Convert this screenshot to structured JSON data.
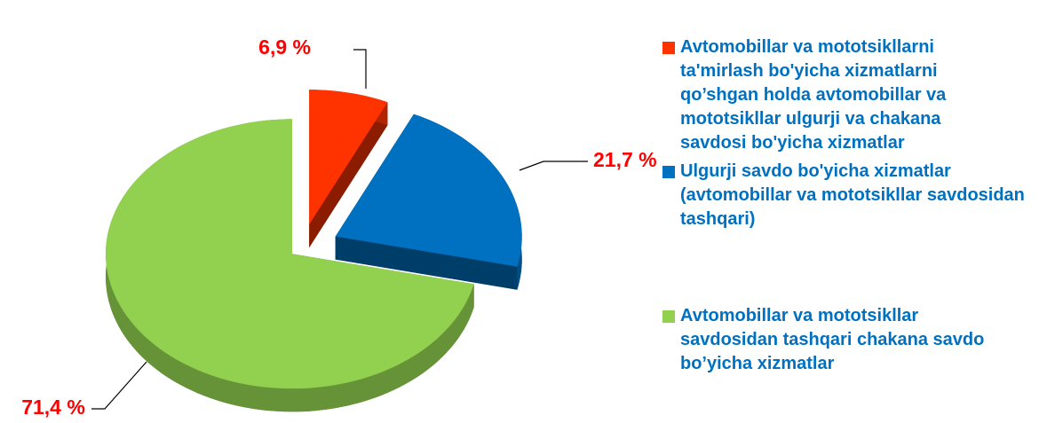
{
  "chart_data": {
    "type": "pie",
    "categories": [
      "Avtomobillar va mototsikllarni ta'mirlash bo'yicha xizmatlarni qo’shgan holda avtomobillar va mototsikllar ulgurji va chakana savdosi bo'yicha xizmatlar",
      "Ulgurji savdo bo'yicha xizmatlar (avtomobillar va mototsikllar savdosidan tashqari)",
      "Avtomobillar va mototsikllar savdosidan  tashqari chakana savdo bo’yicha xizmatlar"
    ],
    "values": [
      6.9,
      21.7,
      71.4
    ],
    "value_labels": [
      "6,9 %",
      "21,7 %",
      "71,4 %"
    ],
    "colors": [
      "#ff3300",
      "#0070c0",
      "#92d050"
    ]
  }
}
